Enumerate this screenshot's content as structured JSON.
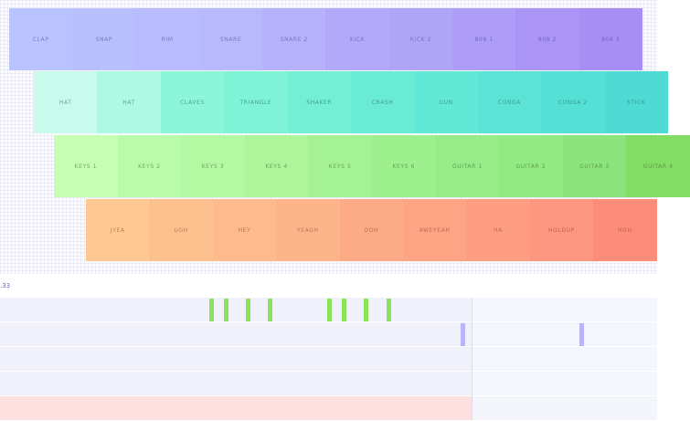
{
  "rows": {
    "drums": [
      "CLAP",
      "SNAP",
      "RIM",
      "SNARE",
      "SNARE 2",
      "KICK",
      "KICK 2",
      "808 1",
      "808 2",
      "808 3"
    ],
    "perc": [
      "HAT",
      "HAT",
      "CLAVES",
      "TRIANGLE",
      "SHAKER",
      "CRASH",
      "GUN",
      "CONGA",
      "CONGA 2",
      "STICK"
    ],
    "keys": [
      "KEYS 1",
      "KEYS 2",
      "KEYS 3",
      "KEYS 4",
      "KEYS 5",
      "KEYS 6",
      "GUITAR 1",
      "GUITAR 2",
      "GUITAR 3",
      "GUITAR 4"
    ],
    "vox": [
      "JYEA",
      "UGH",
      "HEY",
      "YEAGH",
      "OOH",
      "AWEYEAH",
      "HA",
      "HOLDUP",
      "HGH"
    ]
  },
  "colors": {
    "drums": [
      "#b9c3fd",
      "#b8bffd",
      "#b8bbfd",
      "#b8b8fc",
      "#b6b1fb",
      "#b2a9fa",
      "#b0a4f9",
      "#ad9cf8",
      "#aa94f6",
      "#a78ef4"
    ],
    "perc": [
      "#c9fbec",
      "#aef8e4",
      "#8ef6d8",
      "#7ef3d6",
      "#72efd5",
      "#69ebd6",
      "#62e8d6",
      "#5be4d5",
      "#55e0d5",
      "#4edbd3"
    ],
    "keys": [
      "#c6feb4",
      "#b9fba8",
      "#b3f8a2",
      "#acf59b",
      "#a5f294",
      "#9ef08f",
      "#97ec89",
      "#92ea83",
      "#8ce57c",
      "#83dc64"
    ],
    "vox": [
      "#fdc892",
      "#fdc08f",
      "#fdba8c",
      "#fdb48a",
      "#fdab86",
      "#fda484",
      "#fd9d81",
      "#fd977f",
      "#fd8c7a"
    ]
  },
  "sequencer": {
    "bpm_label": ".33",
    "note_colors": {
      "green": "#8de257",
      "purple": "#b8b5f8"
    },
    "notes": [
      {
        "lane": 0,
        "step": 0,
        "color": "green"
      },
      {
        "lane": 0,
        "step": 1,
        "color": "green"
      },
      {
        "lane": 0,
        "step": 2,
        "color": "green"
      },
      {
        "lane": 0,
        "step": 3,
        "color": "green"
      },
      {
        "lane": 0,
        "step": 4,
        "color": "green"
      },
      {
        "lane": 0,
        "step": 5,
        "color": "green"
      },
      {
        "lane": 0,
        "step": 6,
        "color": "green"
      },
      {
        "lane": 0,
        "step": 7,
        "color": "green"
      },
      {
        "lane": 1,
        "step": 8,
        "color": "purple"
      },
      {
        "lane": 1,
        "step": 9,
        "color": "purple"
      }
    ]
  }
}
